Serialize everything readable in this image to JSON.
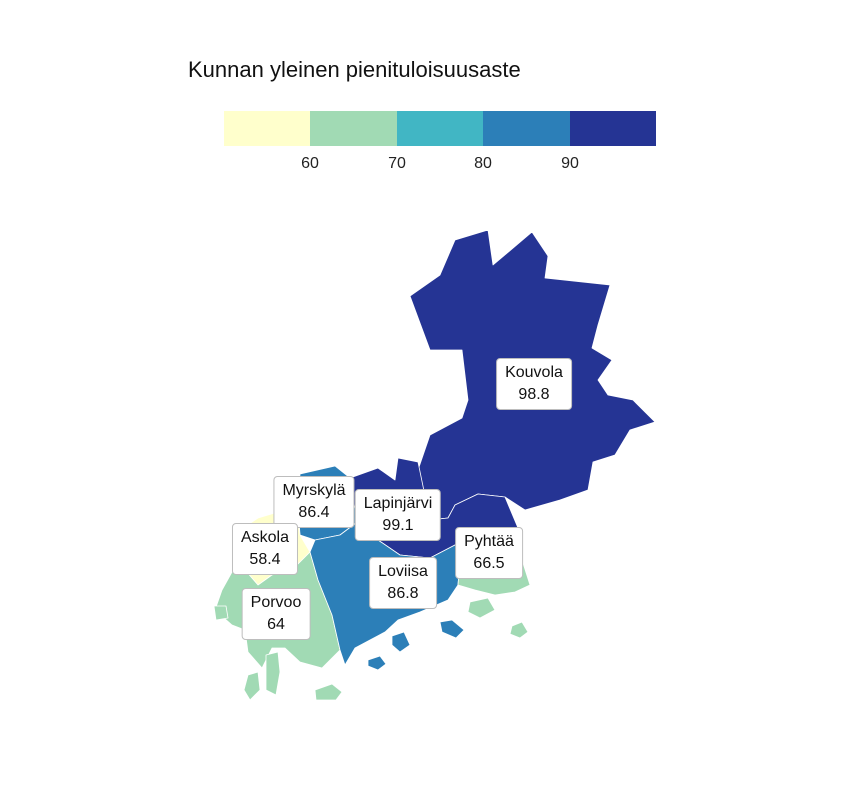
{
  "title": "Kunnan yleinen pienituloisuusaste",
  "legend": {
    "colors": [
      "#ffffcc",
      "#a1dab4",
      "#41b6c4",
      "#2c7fb8",
      "#253494"
    ],
    "ticks": [
      "60",
      "70",
      "80",
      "90"
    ],
    "breaks": [
      60,
      70,
      80,
      90
    ]
  },
  "map_data": {
    "type": "choropleth",
    "variable": "Kunnan yleinen pienituloisuusaste",
    "regions": [
      {
        "name": "Kouvola",
        "value": "98.8",
        "color": "#253494"
      },
      {
        "name": "Myrskylä",
        "value": "86.4",
        "color": "#2c7fb8"
      },
      {
        "name": "Lapinjärvi",
        "value": "99.1",
        "color": "#253494"
      },
      {
        "name": "Askola",
        "value": "58.4",
        "color": "#ffffcc"
      },
      {
        "name": "Pyhtää",
        "value": "66.5",
        "color": "#a1dab4"
      },
      {
        "name": "Loviisa",
        "value": "86.8",
        "color": "#2c7fb8"
      },
      {
        "name": "Porvoo",
        "value": "64",
        "color": "#a1dab4"
      }
    ]
  }
}
